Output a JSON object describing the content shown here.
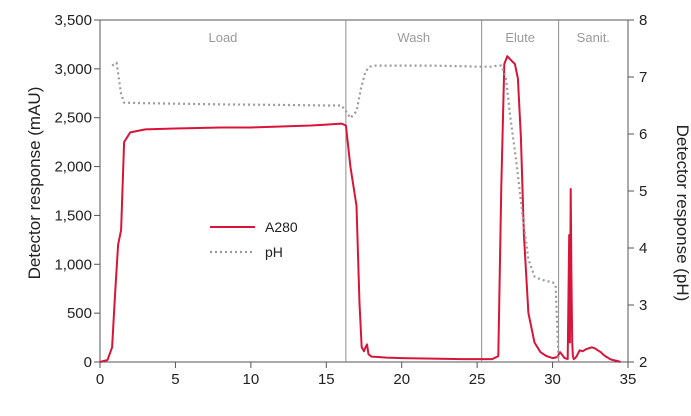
{
  "chart_data": {
    "type": "line",
    "title": "",
    "xlabel": "",
    "y_left_label": "Detector response (mAU)",
    "y_right_label": "Detector response (pH)",
    "xlim": [
      0,
      35
    ],
    "ylim_left": [
      0,
      3500
    ],
    "ylim_right": [
      2,
      8
    ],
    "x_ticks": [
      0,
      5,
      10,
      15,
      20,
      25,
      30,
      35
    ],
    "x_tick_labels": [
      "0",
      "5",
      "10",
      "15",
      "20",
      "25",
      "30",
      "35"
    ],
    "y_left_ticks": [
      0,
      500,
      1000,
      1500,
      2000,
      2500,
      3000,
      3500
    ],
    "y_left_tick_labels": [
      "0",
      "500",
      "1,000",
      "1,500",
      "2,000",
      "2,500",
      "3,000",
      "3,500"
    ],
    "y_right_ticks": [
      2,
      3,
      4,
      5,
      6,
      7,
      8
    ],
    "y_right_tick_labels": [
      "2",
      "3",
      "4",
      "5",
      "6",
      "7",
      "8"
    ],
    "grid": false,
    "legend_position": "center-left",
    "phases": [
      {
        "label": "Load",
        "start": 0,
        "end": 16.3
      },
      {
        "label": "Wash",
        "start": 16.3,
        "end": 25.3
      },
      {
        "label": "Elute",
        "start": 25.3,
        "end": 30.4
      },
      {
        "label": "Sanit.",
        "start": 30.4,
        "end": 35
      }
    ],
    "series": [
      {
        "name": "A280",
        "axis": "left",
        "color": "#d7153a",
        "style": "solid",
        "x": [
          0,
          0.5,
          0.8,
          1.0,
          1.2,
          1.4,
          1.6,
          2.0,
          3,
          5,
          8,
          10,
          12,
          14,
          15,
          16.0,
          16.3,
          16.6,
          17.0,
          17.2,
          17.35,
          17.5,
          17.6,
          17.7,
          17.8,
          18.0,
          19,
          20,
          22,
          24,
          25,
          26.0,
          26.4,
          26.6,
          26.8,
          27.0,
          27.3,
          27.5,
          27.7,
          27.9,
          28.1,
          28.4,
          28.8,
          29.2,
          29.6,
          30.0,
          30.3,
          30.5,
          30.8,
          31.0,
          31.1,
          31.15,
          31.2,
          31.25,
          31.3,
          31.35,
          31.4,
          31.5,
          31.6,
          31.7,
          31.8,
          32.0,
          32.2,
          32.4,
          32.6,
          32.8,
          33.0,
          33.2,
          33.4,
          33.6,
          33.8,
          34.0,
          34.3,
          34.5
        ],
        "y": [
          0,
          20,
          150,
          700,
          1200,
          1350,
          2250,
          2350,
          2380,
          2390,
          2400,
          2400,
          2410,
          2420,
          2430,
          2440,
          2420,
          2000,
          1600,
          600,
          150,
          110,
          150,
          180,
          80,
          55,
          45,
          40,
          35,
          30,
          30,
          30,
          60,
          1800,
          3050,
          3130,
          3080,
          3050,
          2900,
          2300,
          1300,
          500,
          200,
          100,
          60,
          40,
          50,
          100,
          40,
          30,
          1300,
          200,
          1770,
          900,
          200,
          60,
          30,
          40,
          60,
          90,
          120,
          110,
          130,
          140,
          150,
          140,
          120,
          100,
          70,
          50,
          30,
          20,
          10,
          0
        ]
      },
      {
        "name": "pH",
        "axis": "right",
        "color": "#9b9b9b",
        "style": "dotted",
        "x": [
          0.8,
          1.1,
          1.4,
          1.6,
          3,
          8,
          12,
          15,
          16.0,
          16.3,
          16.6,
          17.0,
          17.3,
          17.6,
          17.9,
          18.2,
          20,
          22,
          24,
          25,
          26.0,
          26.3,
          26.6,
          26.9,
          27.2,
          27.6,
          28.0,
          28.4,
          28.8,
          29.2,
          29.6,
          30.0,
          30.2,
          30.4
        ],
        "y": [
          7.2,
          7.25,
          6.7,
          6.55,
          6.54,
          6.52,
          6.51,
          6.5,
          6.5,
          6.4,
          6.28,
          6.4,
          6.8,
          7.1,
          7.18,
          7.2,
          7.2,
          7.2,
          7.19,
          7.18,
          7.18,
          7.2,
          7.2,
          7.0,
          6.3,
          5.5,
          4.6,
          3.8,
          3.5,
          3.45,
          3.42,
          3.4,
          3.35,
          2.0
        ]
      }
    ]
  }
}
